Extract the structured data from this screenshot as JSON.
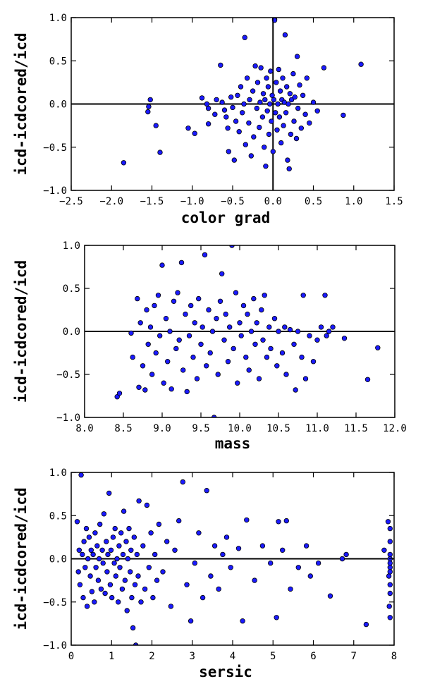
{
  "chart_data": [
    {
      "type": "scatter",
      "xlabel": "color grad",
      "ylabel": "icd-icdcored/icd",
      "xlim": [
        -2.5,
        1.5
      ],
      "ylim": [
        -1.0,
        1.0
      ],
      "xticks": [
        "−2.5",
        "−2.0",
        "−1.5",
        "−1.0",
        "−0.5",
        "0.0",
        "0.5",
        "1.0",
        "1.5"
      ],
      "yticks": [
        "−1.0",
        "−0.5",
        "0.0",
        "0.5",
        "1.0"
      ],
      "hlines": [
        0.0
      ],
      "vlines": [
        0.0
      ],
      "points": [
        [
          -1.85,
          -0.68
        ],
        [
          -1.52,
          0.05
        ],
        [
          -1.54,
          -0.03
        ],
        [
          -1.55,
          -0.09
        ],
        [
          -1.45,
          -0.25
        ],
        [
          -1.4,
          -0.56
        ],
        [
          -1.05,
          -0.28
        ],
        [
          -0.97,
          -0.34
        ],
        [
          -0.88,
          0.07
        ],
        [
          -0.82,
          0.0
        ],
        [
          -0.8,
          -0.05
        ],
        [
          -0.8,
          -0.23
        ],
        [
          -0.72,
          -0.12
        ],
        [
          -0.7,
          0.05
        ],
        [
          -0.65,
          0.45
        ],
        [
          -0.63,
          0.02
        ],
        [
          -0.6,
          -0.07
        ],
        [
          -0.58,
          -0.15
        ],
        [
          -0.56,
          -0.28
        ],
        [
          -0.55,
          -0.55
        ],
        [
          -0.52,
          0.08
        ],
        [
          -0.5,
          -0.04
        ],
        [
          -0.48,
          -0.65
        ],
        [
          -0.46,
          -0.2
        ],
        [
          -0.44,
          0.1
        ],
        [
          -0.42,
          -0.32
        ],
        [
          -0.4,
          0.2
        ],
        [
          -0.38,
          -0.1
        ],
        [
          -0.36,
          0.0
        ],
        [
          -0.35,
          0.77
        ],
        [
          -0.34,
          -0.47
        ],
        [
          -0.32,
          0.3
        ],
        [
          -0.3,
          -0.22
        ],
        [
          -0.29,
          0.05
        ],
        [
          -0.27,
          -0.6
        ],
        [
          -0.25,
          0.15
        ],
        [
          -0.24,
          -0.38
        ],
        [
          -0.22,
          0.44
        ],
        [
          -0.2,
          -0.05
        ],
        [
          -0.19,
          0.25
        ],
        [
          -0.17,
          -0.27
        ],
        [
          -0.16,
          0.02
        ],
        [
          -0.15,
          0.42
        ],
        [
          -0.13,
          -0.15
        ],
        [
          -0.12,
          0.12
        ],
        [
          -0.11,
          -0.5
        ],
        [
          -0.1,
          0.05
        ],
        [
          -0.09,
          -0.72
        ],
        [
          -0.08,
          0.3
        ],
        [
          -0.07,
          -0.08
        ],
        [
          -0.06,
          0.2
        ],
        [
          -0.05,
          -0.35
        ],
        [
          -0.04,
          0.0
        ],
        [
          -0.03,
          0.38
        ],
        [
          -0.02,
          -0.2
        ],
        [
          -0.01,
          0.1
        ],
        [
          0.0,
          -0.55
        ],
        [
          0.01,
          0.05
        ],
        [
          0.02,
          0.98
        ],
        [
          0.02,
          0.97
        ],
        [
          0.03,
          -0.1
        ],
        [
          0.04,
          0.25
        ],
        [
          0.05,
          -0.3
        ],
        [
          0.06,
          0.0
        ],
        [
          0.07,
          0.4
        ],
        [
          0.08,
          -0.15
        ],
        [
          0.09,
          0.15
        ],
        [
          0.1,
          -0.45
        ],
        [
          0.11,
          0.05
        ],
        [
          0.12,
          0.3
        ],
        [
          0.13,
          -0.25
        ],
        [
          0.14,
          0.02
        ],
        [
          0.15,
          0.8
        ],
        [
          0.16,
          -0.1
        ],
        [
          0.17,
          0.2
        ],
        [
          0.18,
          -0.65
        ],
        [
          0.19,
          0.0
        ],
        [
          0.2,
          -0.75
        ],
        [
          0.21,
          0.12
        ],
        [
          0.22,
          -0.35
        ],
        [
          0.23,
          0.05
        ],
        [
          0.25,
          0.35
        ],
        [
          0.26,
          -0.2
        ],
        [
          0.27,
          0.08
        ],
        [
          0.29,
          -0.4
        ],
        [
          0.3,
          0.55
        ],
        [
          0.31,
          -0.05
        ],
        [
          0.33,
          0.22
        ],
        [
          0.35,
          -0.28
        ],
        [
          0.37,
          0.1
        ],
        [
          0.4,
          -0.12
        ],
        [
          0.42,
          0.3
        ],
        [
          0.45,
          -0.22
        ],
        [
          0.5,
          0.02
        ],
        [
          0.55,
          -0.08
        ],
        [
          0.63,
          0.42
        ],
        [
          0.87,
          -0.13
        ],
        [
          1.09,
          0.46
        ]
      ]
    },
    {
      "type": "scatter",
      "xlabel": "mass",
      "ylabel": "icd-icdcored/icd",
      "xlim": [
        8.0,
        12.0
      ],
      "ylim": [
        -1.0,
        1.0
      ],
      "xticks": [
        "8.0",
        "8.5",
        "9.0",
        "9.5",
        "10.0",
        "10.5",
        "11.0",
        "11.5",
        "12.0"
      ],
      "yticks": [
        "−1.0",
        "−0.5",
        "0.0",
        "0.5",
        "1.0"
      ],
      "hlines": [
        0.0
      ],
      "vlines": [],
      "points": [
        [
          8.42,
          -0.76
        ],
        [
          8.45,
          -0.72
        ],
        [
          8.6,
          -0.02
        ],
        [
          8.62,
          -0.3
        ],
        [
          8.68,
          0.38
        ],
        [
          8.7,
          -0.65
        ],
        [
          8.72,
          0.1
        ],
        [
          8.75,
          -0.4
        ],
        [
          8.78,
          -0.68
        ],
        [
          8.8,
          0.25
        ],
        [
          8.82,
          -0.15
        ],
        [
          8.85,
          0.05
        ],
        [
          8.87,
          -0.5
        ],
        [
          8.9,
          0.3
        ],
        [
          8.92,
          -0.25
        ],
        [
          8.95,
          0.42
        ],
        [
          8.97,
          -0.05
        ],
        [
          9.0,
          0.77
        ],
        [
          9.02,
          -0.6
        ],
        [
          9.05,
          0.15
        ],
        [
          9.07,
          -0.35
        ],
        [
          9.1,
          0.0
        ],
        [
          9.12,
          -0.67
        ],
        [
          9.15,
          0.35
        ],
        [
          9.18,
          -0.2
        ],
        [
          9.2,
          0.45
        ],
        [
          9.22,
          -0.1
        ],
        [
          9.25,
          0.8
        ],
        [
          9.27,
          -0.45
        ],
        [
          9.3,
          0.2
        ],
        [
          9.32,
          -0.7
        ],
        [
          9.35,
          -0.05
        ],
        [
          9.37,
          0.3
        ],
        [
          9.4,
          -0.3
        ],
        [
          9.42,
          0.1
        ],
        [
          9.45,
          -0.55
        ],
        [
          9.47,
          0.38
        ],
        [
          9.5,
          -0.15
        ],
        [
          9.52,
          0.05
        ],
        [
          9.55,
          0.89
        ],
        [
          9.57,
          -0.4
        ],
        [
          9.6,
          0.25
        ],
        [
          9.62,
          -0.25
        ],
        [
          9.65,
          0.0
        ],
        [
          9.67,
          -1.0
        ],
        [
          9.7,
          0.15
        ],
        [
          9.72,
          -0.5
        ],
        [
          9.75,
          0.35
        ],
        [
          9.77,
          0.67
        ],
        [
          9.8,
          -0.1
        ],
        [
          9.82,
          0.2
        ],
        [
          9.85,
          -0.35
        ],
        [
          9.87,
          0.05
        ],
        [
          9.9,
          1.0
        ],
        [
          9.92,
          -0.2
        ],
        [
          9.95,
          0.45
        ],
        [
          9.97,
          -0.6
        ],
        [
          10.0,
          0.1
        ],
        [
          10.02,
          -0.05
        ],
        [
          10.05,
          0.3
        ],
        [
          10.08,
          -0.3
        ],
        [
          10.1,
          0.2
        ],
        [
          10.12,
          -0.45
        ],
        [
          10.15,
          0.0
        ],
        [
          10.18,
          0.38
        ],
        [
          10.2,
          -0.15
        ],
        [
          10.22,
          0.1
        ],
        [
          10.25,
          -0.55
        ],
        [
          10.28,
          0.25
        ],
        [
          10.3,
          -0.1
        ],
        [
          10.32,
          0.42
        ],
        [
          10.35,
          -0.3
        ],
        [
          10.38,
          0.05
        ],
        [
          10.4,
          -0.2
        ],
        [
          10.45,
          0.15
        ],
        [
          10.48,
          -0.4
        ],
        [
          10.5,
          0.0
        ],
        [
          10.55,
          -0.25
        ],
        [
          10.58,
          0.05
        ],
        [
          10.6,
          -0.5
        ],
        [
          10.65,
          0.02
        ],
        [
          10.7,
          -0.15
        ],
        [
          10.72,
          -0.68
        ],
        [
          10.75,
          0.0
        ],
        [
          10.8,
          -0.3
        ],
        [
          10.82,
          0.42
        ],
        [
          10.85,
          -0.55
        ],
        [
          10.9,
          -0.05
        ],
        [
          10.95,
          -0.35
        ],
        [
          11.0,
          -0.1
        ],
        [
          11.05,
          0.05
        ],
        [
          11.1,
          0.42
        ],
        [
          11.12,
          -0.05
        ],
        [
          11.15,
          0.0
        ],
        [
          11.2,
          0.05
        ],
        [
          11.35,
          -0.08
        ],
        [
          11.65,
          -0.56
        ],
        [
          11.78,
          -0.19
        ]
      ]
    },
    {
      "type": "scatter",
      "xlabel": "sersic",
      "ylabel": "icd-icdcored/icd",
      "xlim": [
        0,
        8.1
      ],
      "ylim": [
        -1.0,
        1.0
      ],
      "xticks": [
        "0",
        "1",
        "2",
        "3",
        "4",
        "5",
        "6",
        "7",
        "8"
      ],
      "yticks": [
        "−1.0",
        "−0.5",
        "0.0",
        "0.5",
        "1.0"
      ],
      "hlines": [
        0.0
      ],
      "vlines": [],
      "points": [
        [
          0.15,
          0.43
        ],
        [
          0.18,
          -0.15
        ],
        [
          0.2,
          0.1
        ],
        [
          0.22,
          -0.3
        ],
        [
          0.25,
          0.97
        ],
        [
          0.28,
          0.05
        ],
        [
          0.3,
          -0.45
        ],
        [
          0.32,
          0.2
        ],
        [
          0.35,
          -0.1
        ],
        [
          0.38,
          0.35
        ],
        [
          0.4,
          -0.55
        ],
        [
          0.42,
          0.0
        ],
        [
          0.45,
          0.25
        ],
        [
          0.48,
          -0.2
        ],
        [
          0.5,
          0.1
        ],
        [
          0.52,
          -0.38
        ],
        [
          0.55,
          0.05
        ],
        [
          0.58,
          -0.5
        ],
        [
          0.6,
          0.3
        ],
        [
          0.62,
          -0.1
        ],
        [
          0.65,
          0.15
        ],
        [
          0.68,
          -0.25
        ],
        [
          0.7,
          0.0
        ],
        [
          0.72,
          0.4
        ],
        [
          0.75,
          -0.35
        ],
        [
          0.78,
          0.1
        ],
        [
          0.8,
          -0.05
        ],
        [
          0.82,
          0.52
        ],
        [
          0.85,
          -0.4
        ],
        [
          0.88,
          0.2
        ],
        [
          0.9,
          -0.15
        ],
        [
          0.92,
          0.05
        ],
        [
          0.95,
          0.76
        ],
        [
          0.98,
          -0.3
        ],
        [
          1.0,
          0.1
        ],
        [
          1.02,
          -0.45
        ],
        [
          1.05,
          0.25
        ],
        [
          1.08,
          -0.05
        ],
        [
          1.1,
          0.35
        ],
        [
          1.12,
          -0.2
        ],
        [
          1.15,
          0.0
        ],
        [
          1.18,
          -0.5
        ],
        [
          1.2,
          0.15
        ],
        [
          1.22,
          -0.1
        ],
        [
          1.25,
          0.3
        ],
        [
          1.28,
          -0.35
        ],
        [
          1.3,
          0.05
        ],
        [
          1.32,
          0.55
        ],
        [
          1.35,
          -0.25
        ],
        [
          1.38,
          0.2
        ],
        [
          1.4,
          -0.6
        ],
        [
          1.42,
          0.0
        ],
        [
          1.45,
          0.35
        ],
        [
          1.48,
          -0.15
        ],
        [
          1.5,
          0.1
        ],
        [
          1.52,
          -0.45
        ],
        [
          1.55,
          -0.8
        ],
        [
          1.58,
          0.25
        ],
        [
          1.6,
          -0.3
        ],
        [
          1.62,
          -1.0
        ],
        [
          1.65,
          0.05
        ],
        [
          1.68,
          -0.2
        ],
        [
          1.7,
          0.67
        ],
        [
          1.75,
          -0.5
        ],
        [
          1.8,
          0.15
        ],
        [
          1.85,
          -0.35
        ],
        [
          1.9,
          0.62
        ],
        [
          1.95,
          -0.1
        ],
        [
          2.0,
          0.3
        ],
        [
          2.05,
          -0.45
        ],
        [
          2.1,
          0.05
        ],
        [
          2.15,
          -0.25
        ],
        [
          2.2,
          0.4
        ],
        [
          2.3,
          -0.15
        ],
        [
          2.4,
          0.2
        ],
        [
          2.5,
          -0.55
        ],
        [
          2.6,
          0.1
        ],
        [
          2.7,
          0.44
        ],
        [
          2.8,
          0.89
        ],
        [
          2.9,
          -0.3
        ],
        [
          3.0,
          -0.72
        ],
        [
          3.1,
          -0.05
        ],
        [
          3.2,
          0.3
        ],
        [
          3.3,
          -0.45
        ],
        [
          3.4,
          0.79
        ],
        [
          3.5,
          -0.2
        ],
        [
          3.6,
          0.15
        ],
        [
          3.7,
          -0.35
        ],
        [
          3.8,
          0.05
        ],
        [
          3.9,
          0.25
        ],
        [
          4.0,
          -0.1
        ],
        [
          4.2,
          0.12
        ],
        [
          4.3,
          -0.72
        ],
        [
          4.4,
          0.45
        ],
        [
          4.6,
          -0.25
        ],
        [
          4.8,
          0.15
        ],
        [
          5.0,
          -0.05
        ],
        [
          5.15,
          -0.68
        ],
        [
          5.2,
          0.43
        ],
        [
          5.3,
          0.1
        ],
        [
          5.4,
          0.44
        ],
        [
          5.5,
          -0.35
        ],
        [
          5.7,
          -0.1
        ],
        [
          5.9,
          0.15
        ],
        [
          6.0,
          -0.2
        ],
        [
          6.2,
          -0.05
        ],
        [
          6.5,
          -0.43
        ],
        [
          6.8,
          0.0
        ],
        [
          6.9,
          0.05
        ],
        [
          7.4,
          -0.76
        ],
        [
          7.85,
          0.1
        ],
        [
          7.95,
          0.43
        ],
        [
          7.97,
          -0.2
        ],
        [
          7.98,
          -0.55
        ],
        [
          8.0,
          0.35
        ],
        [
          8.0,
          0.2
        ],
        [
          8.0,
          0.05
        ],
        [
          8.0,
          -0.05
        ],
        [
          8.0,
          -0.1
        ],
        [
          8.0,
          -0.3
        ],
        [
          8.0,
          -0.4
        ],
        [
          8.0,
          -0.68
        ],
        [
          8.0,
          -0.15
        ],
        [
          8.0,
          0.0
        ]
      ]
    }
  ]
}
